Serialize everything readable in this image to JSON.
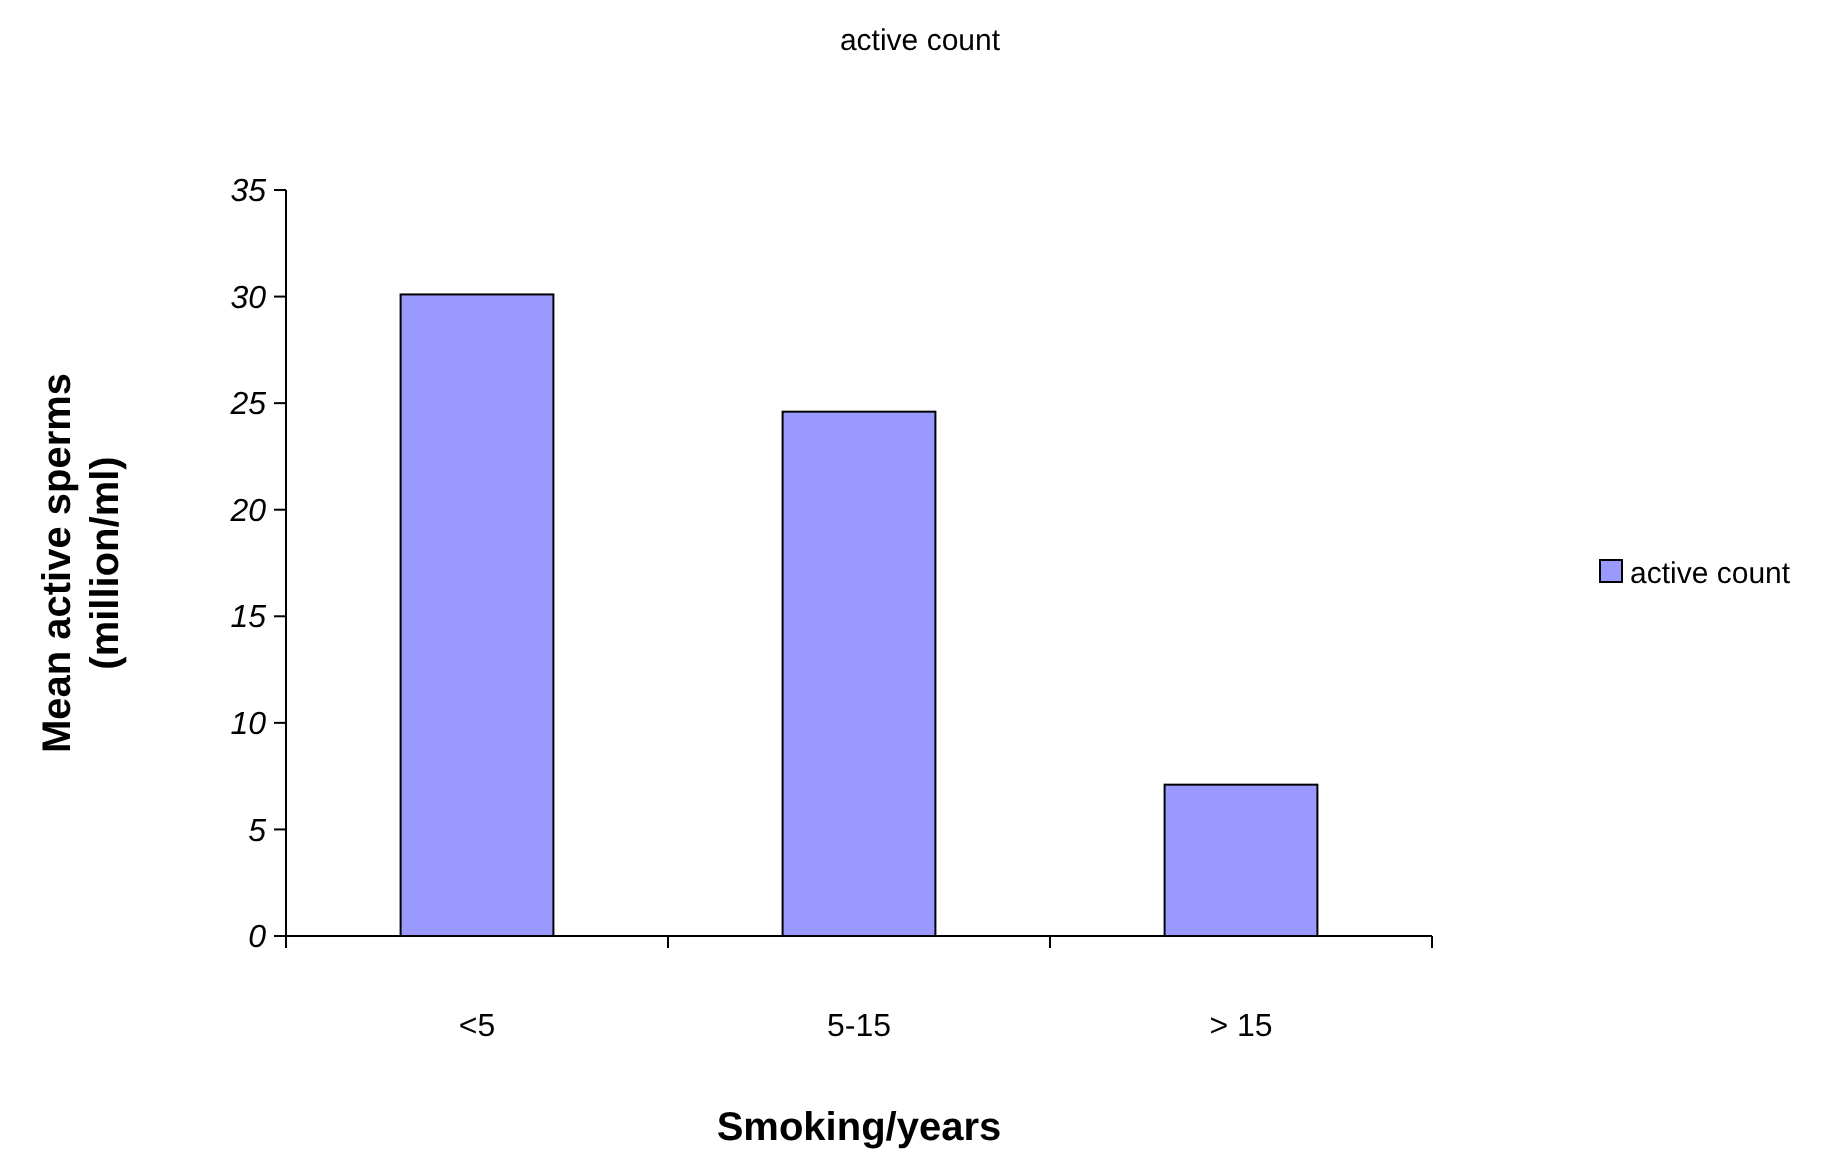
{
  "chart_data": {
    "type": "bar",
    "title": "active count",
    "xlabel": "Smoking/years",
    "ylabel": "Mean active sperms\n(million/ml)",
    "categories": [
      "<5",
      "5-15",
      "> 15"
    ],
    "series": [
      {
        "name": "active count",
        "color": "#9999ff",
        "values": [
          30.1,
          24.6,
          7.1
        ]
      }
    ],
    "ylim": [
      0,
      35
    ],
    "yticks": [
      0,
      5,
      10,
      15,
      20,
      25,
      30,
      35
    ],
    "legend": "right"
  }
}
